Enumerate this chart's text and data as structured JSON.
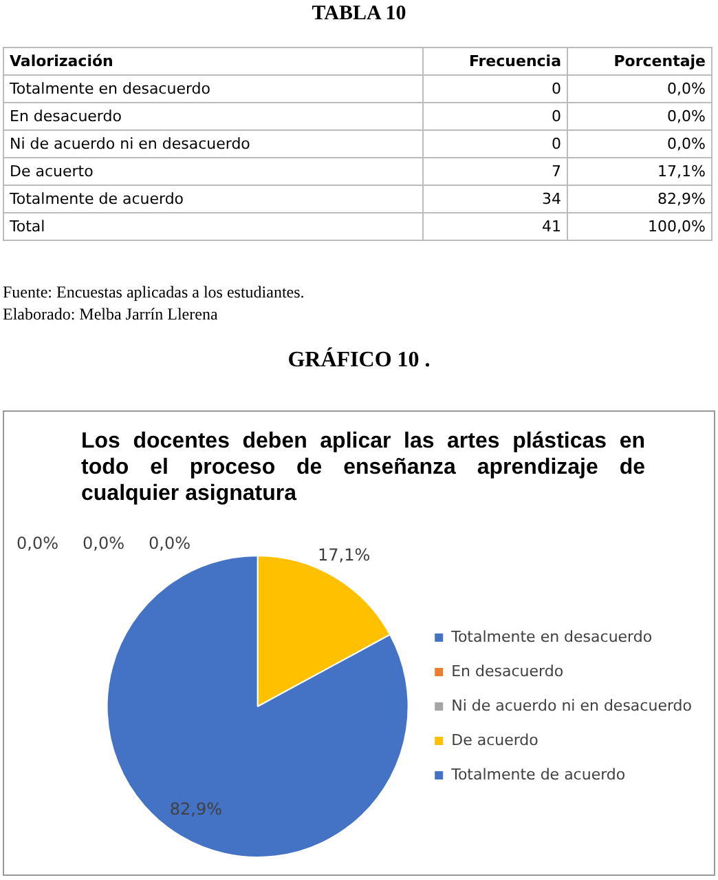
{
  "chart_data": {
    "type": "pie",
    "title": "Los docentes deben aplicar las artes plásticas en todo el proceso de enseñanza aprendizaje de cualquier asignatura",
    "categories": [
      "Totalmente en desacuerdo",
      "En desacuerdo",
      "Ni de acuerdo ni en desacuerdo",
      "De acuerdo",
      "Totalmente de acuerdo"
    ],
    "values": [
      0,
      0,
      0,
      17.1,
      82.9
    ],
    "colors": [
      "#4472c4",
      "#ed7d31",
      "#a5a5a5",
      "#ffc000",
      "#4472c4"
    ],
    "value_labels": [
      "0,0%",
      "0,0%",
      "0,0%",
      "17,1%",
      "82,9%"
    ],
    "legend": "right",
    "annotations": [
      "TABLA 10",
      "Valorización",
      "Frecuencia",
      "Porcentaje",
      "Totalmente en desacuerdo",
      "0",
      "0,0%",
      "En desacuerdo",
      "0",
      "0,0%",
      "Ni de acuerdo ni en desacuerdo",
      "0",
      "0,0%",
      "De acuerto",
      "7",
      "17,1%",
      "Totalmente de acuerdo",
      "34",
      "82,9%",
      "Total",
      "41",
      "100,0%",
      "Fuente: Encuestas aplicadas a los estudiantes.",
      "Elaborado: Melba Jarrín Llerena",
      "GRÁFICO 10 ."
    ]
  }
}
